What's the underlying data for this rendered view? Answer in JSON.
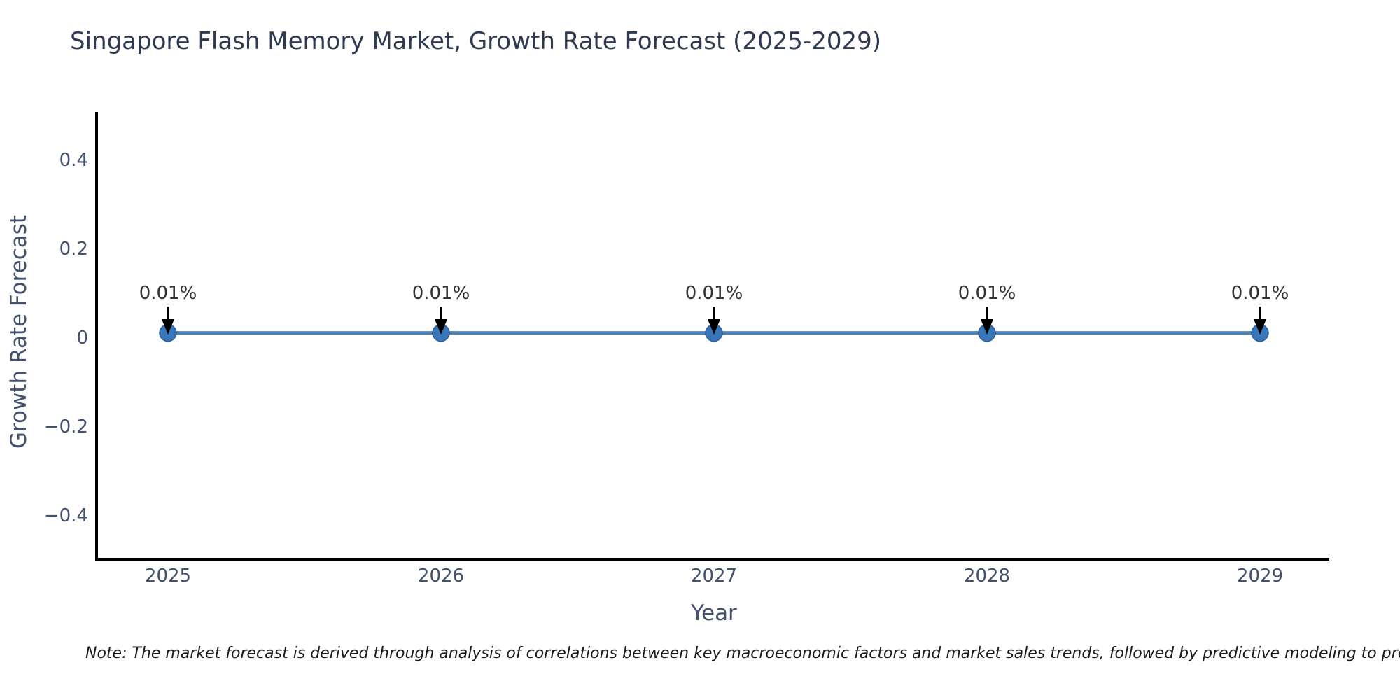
{
  "chart_data": {
    "type": "line",
    "title": "Singapore Flash Memory Market, Growth Rate Forecast (2025-2029)",
    "xlabel": "Year",
    "ylabel": "Growth Rate Forecast",
    "categories": [
      "2025",
      "2026",
      "2027",
      "2028",
      "2029"
    ],
    "series": [
      {
        "name": "Growth Rate Forecast",
        "values": [
          0.01,
          0.01,
          0.01,
          0.01,
          0.01
        ]
      }
    ],
    "point_labels": [
      "0.01%",
      "0.01%",
      "0.01%",
      "0.01%",
      "0.01%"
    ],
    "yticks": [
      {
        "value": 0.4,
        "label": "0.4"
      },
      {
        "value": 0.2,
        "label": "0.2"
      },
      {
        "value": 0,
        "label": "0"
      },
      {
        "value": -0.2,
        "label": "−0.2"
      },
      {
        "value": -0.4,
        "label": "−0.4"
      }
    ],
    "ylim": [
      -0.5,
      0.51
    ],
    "grid": false,
    "legend": "none",
    "annotation_style": "down-arrow-to-point",
    "colors": {
      "line": "#4d80ac",
      "marker": "#3a77ba",
      "marker_edge": "#2d5f99",
      "axis": "#000000",
      "tick_text": "#42526e",
      "title_text": "#2e3a52",
      "annotation_text": "#333333",
      "annotation_arrow": "#000000",
      "note_text": "#1a1a1a",
      "background": "#ffffff"
    }
  },
  "footnote": "Note: The market forecast is derived through analysis of correlations between key macroeconomic factors and market sales trends, followed by predictive modeling to project future sales"
}
